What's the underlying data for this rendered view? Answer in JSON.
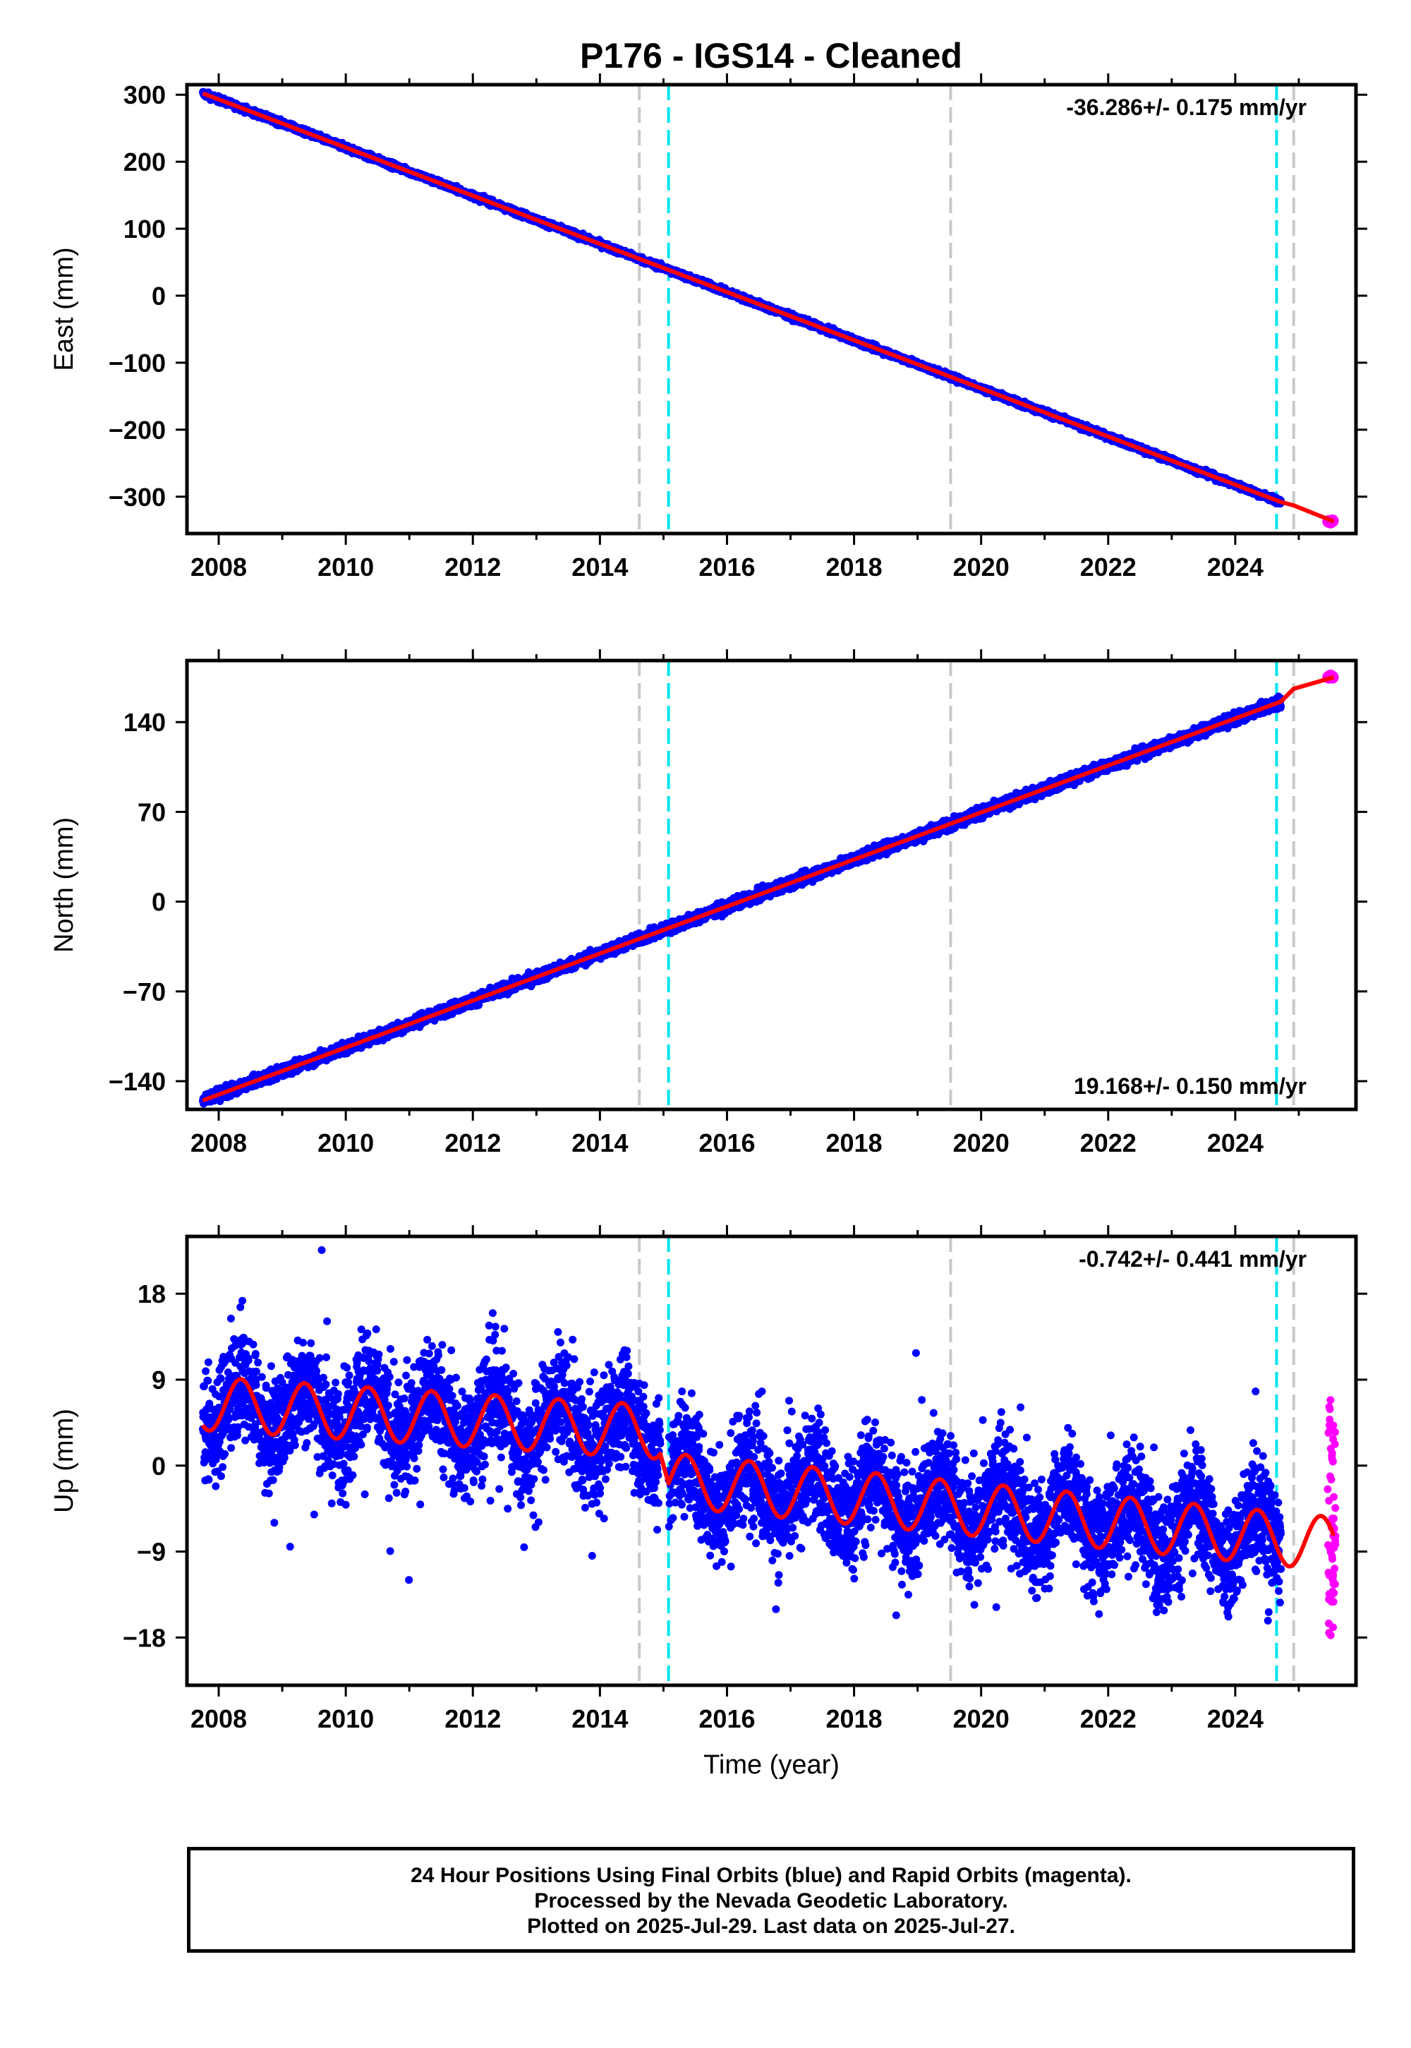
{
  "title": "P176  - IGS14 - Cleaned",
  "colors": {
    "final": "#0000ff",
    "rapid": "#ff00ff",
    "model": "#ff0000",
    "grey_line": "#c8c8c8",
    "cyan_line": "#00e5ee"
  },
  "footer": {
    "line1": "24 Hour Positions Using Final Orbits (blue) and Rapid Orbits (magenta).",
    "line2": "Processed by the Nevada Geodetic Laboratory.",
    "line3": "Plotted on 2025-Jul-29. Last data on 2025-Jul-27."
  },
  "chart_data": [
    {
      "type": "scatter",
      "ylabel": "East (mm)",
      "xlim": [
        2007.5,
        2025.9
      ],
      "ylim": [
        -355,
        315
      ],
      "xticks": [
        2008,
        2010,
        2012,
        2014,
        2016,
        2018,
        2020,
        2022,
        2024
      ],
      "xtick_labels": [
        "2008",
        "2010",
        "2012",
        "2014",
        "2016",
        "2018",
        "2020",
        "2022",
        "2024"
      ],
      "yticks": [
        300,
        200,
        100,
        0,
        -100,
        -200,
        -300
      ],
      "ytick_labels": [
        "300",
        "200",
        "100",
        "0",
        "−100",
        "−200",
        "−300"
      ],
      "annotation": "-36.286+/- 0.175 mm/yr",
      "annotation_position": "top-right",
      "grey_lines": [
        2014.62,
        2019.52,
        2024.92
      ],
      "cyan_lines": [
        2015.08,
        2024.65
      ],
      "series": [
        {
          "kind": "final",
          "x_start": 2007.75,
          "x_end": 2024.72,
          "y_start": 302,
          "y_end": -308,
          "scatter": 3
        },
        {
          "kind": "rapid",
          "x": [
            2025.47,
            2025.5,
            2025.53
          ],
          "y": [
            -337,
            -338,
            -336
          ]
        },
        {
          "kind": "model",
          "x": [
            2007.75,
            2024.72,
            2024.92,
            2025.55
          ],
          "y": [
            302,
            -308,
            -313,
            -337
          ]
        }
      ]
    },
    {
      "type": "scatter",
      "ylabel": "North (mm)",
      "xlim": [
        2007.5,
        2025.9
      ],
      "ylim": [
        -162,
        188
      ],
      "xticks": [
        2008,
        2010,
        2012,
        2014,
        2016,
        2018,
        2020,
        2022,
        2024
      ],
      "xtick_labels": [
        "2008",
        "2010",
        "2012",
        "2014",
        "2016",
        "2018",
        "2020",
        "2022",
        "2024"
      ],
      "yticks": [
        140,
        70,
        0,
        -70,
        -140
      ],
      "ytick_labels": [
        "140",
        "70",
        "0",
        "−70",
        "−140"
      ],
      "annotation": "19.168+/- 0.150 mm/yr",
      "annotation_position": "bottom-right",
      "grey_lines": [
        2014.62,
        2019.52,
        2024.92
      ],
      "cyan_lines": [
        2015.08,
        2024.65
      ],
      "series": [
        {
          "kind": "final",
          "x_start": 2007.75,
          "x_end": 2024.72,
          "y_start": -155,
          "y_end": 156,
          "scatter": 3
        },
        {
          "kind": "rapid",
          "x": [
            2025.47,
            2025.5,
            2025.53
          ],
          "y": [
            175,
            176,
            175
          ]
        },
        {
          "kind": "model",
          "x": [
            2007.75,
            2024.72,
            2024.92,
            2025.55
          ],
          "y": [
            -155,
            156,
            166,
            175
          ]
        }
      ]
    },
    {
      "type": "scatter",
      "ylabel": "Up (mm)",
      "xlim": [
        2007.5,
        2025.9
      ],
      "ylim": [
        -23,
        24
      ],
      "xticks": [
        2008,
        2010,
        2012,
        2014,
        2016,
        2018,
        2020,
        2022,
        2024
      ],
      "xtick_labels": [
        "2008",
        "2010",
        "2012",
        "2014",
        "2016",
        "2018",
        "2020",
        "2022",
        "2024"
      ],
      "yticks": [
        18,
        9,
        0,
        -9,
        -18
      ],
      "ytick_labels": [
        "18",
        "9",
        "0",
        "−9",
        "−18"
      ],
      "xlabel": "Time (year)",
      "annotation": "-0.742+/- 0.441 mm/yr",
      "annotation_position": "top-right",
      "grey_lines": [
        2014.62,
        2019.52,
        2024.92
      ],
      "cyan_lines": [
        2015.08,
        2024.65
      ],
      "series": [
        {
          "kind": "final",
          "segments": [
            {
              "x_start": 2007.75,
              "x_end": 2014.95,
              "y_start": 6.5,
              "y_end": 3.5
            },
            {
              "x_start": 2015.08,
              "x_end": 2024.72,
              "y_start": -1.5,
              "y_end": -7.5
            }
          ],
          "scatter": 4,
          "amplitude": 2.8
        },
        {
          "kind": "rapid",
          "x_start": 2025.45,
          "x_end": 2025.58,
          "y_min": -18,
          "y_max": 7
        },
        {
          "kind": "model",
          "segments": [
            {
              "x_start": 2007.75,
              "x_end": 2014.95,
              "y_start": 6.5,
              "y_end": 3.5
            },
            {
              "x_start": 2015.08,
              "x_end": 2025.55,
              "y_start": -1.5,
              "y_end": -8.2
            }
          ],
          "amplitude": 2.8
        }
      ]
    }
  ]
}
